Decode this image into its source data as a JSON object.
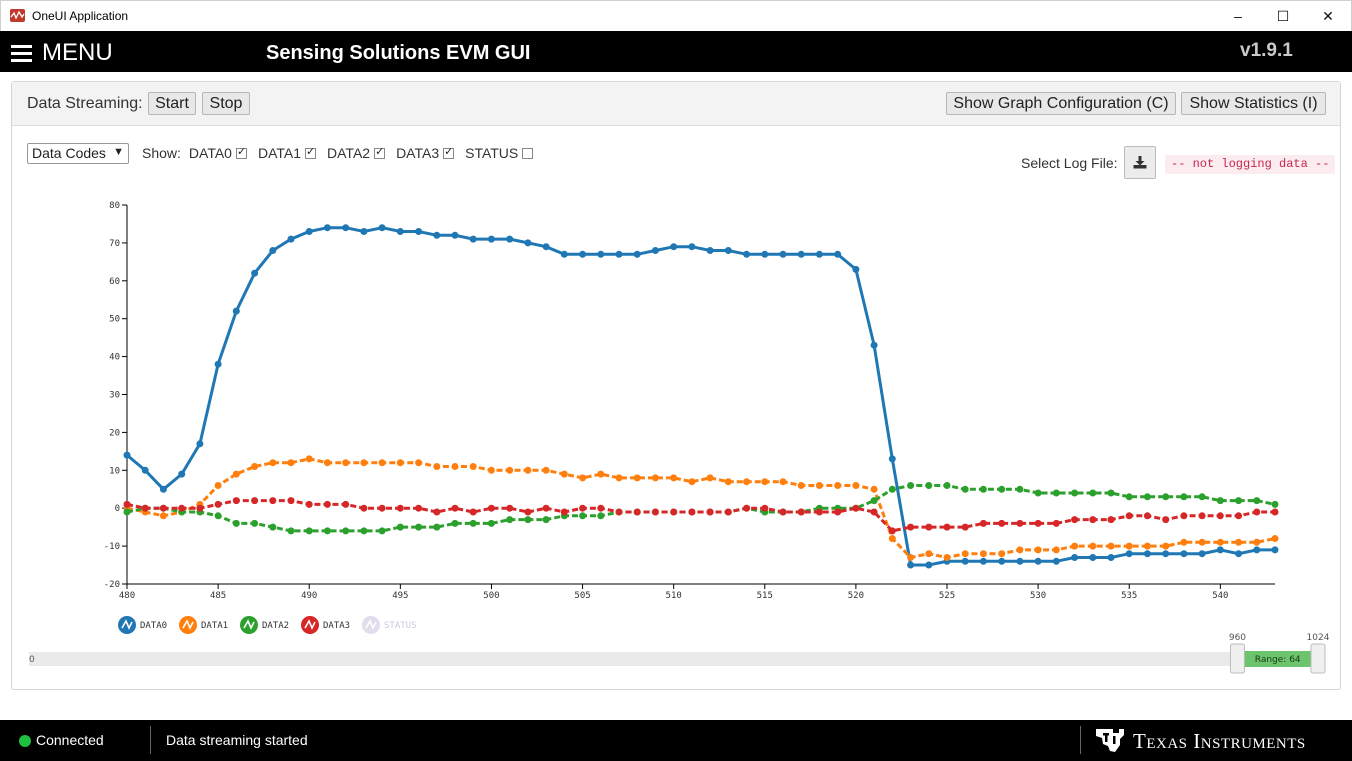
{
  "window": {
    "title": "OneUI Application",
    "minimize": "–",
    "maximize": "☐",
    "close": "✕"
  },
  "header": {
    "menu_label": "MENU",
    "title": "Sensing Solutions EVM GUI",
    "version": "v1.9.1"
  },
  "toolbar": {
    "streaming_label": "Data Streaming:",
    "start_label": "Start",
    "stop_label": "Stop",
    "graph_config_label": "Show Graph Configuration (C)",
    "statistics_label": "Show Statistics (I)"
  },
  "controls": {
    "display_mode": "Data Codes",
    "show_label": "Show:",
    "channels": [
      {
        "label": "DATA0",
        "checked": true
      },
      {
        "label": "DATA1",
        "checked": true
      },
      {
        "label": "DATA2",
        "checked": true
      },
      {
        "label": "DATA3",
        "checked": true
      },
      {
        "label": "STATUS",
        "checked": false
      }
    ],
    "log_label": "Select Log File:",
    "log_status": "-- not logging data --"
  },
  "chart_data": {
    "type": "line",
    "title": "",
    "xlabel": "",
    "ylabel": "",
    "xlim": [
      480,
      543
    ],
    "ylim": [
      -20,
      80
    ],
    "x_ticks": [
      480,
      485,
      490,
      495,
      500,
      505,
      510,
      515,
      520,
      525,
      530,
      535,
      540
    ],
    "y_ticks": [
      -20,
      -10,
      0,
      10,
      20,
      30,
      40,
      50,
      60,
      70,
      80
    ],
    "x_start": 480,
    "series": [
      {
        "name": "DATA0",
        "color": "#1f77b4",
        "values": [
          14,
          10,
          5,
          9,
          17,
          38,
          52,
          62,
          68,
          71,
          73,
          74,
          74,
          73,
          74,
          73,
          73,
          72,
          72,
          71,
          71,
          71,
          70,
          69,
          67,
          67,
          67,
          67,
          67,
          68,
          69,
          69,
          68,
          68,
          67,
          67,
          67,
          67,
          67,
          67,
          63,
          43,
          13,
          -15,
          -15,
          -14,
          -14,
          -14,
          -14,
          -14,
          -14,
          -14,
          -13,
          -13,
          -13,
          -12,
          -12,
          -12,
          -12,
          -12,
          -11,
          -12,
          -11,
          -11
        ]
      },
      {
        "name": "DATA1",
        "color": "#ff7f0e",
        "values": [
          0,
          -1,
          -2,
          -1,
          1,
          6,
          9,
          11,
          12,
          12,
          13,
          12,
          12,
          12,
          12,
          12,
          12,
          11,
          11,
          11,
          10,
          10,
          10,
          10,
          9,
          8,
          9,
          8,
          8,
          8,
          8,
          7,
          8,
          7,
          7,
          7,
          7,
          6,
          6,
          6,
          6,
          5,
          -8,
          -13,
          -12,
          -13,
          -12,
          -12,
          -12,
          -11,
          -11,
          -11,
          -10,
          -10,
          -10,
          -10,
          -10,
          -10,
          -9,
          -9,
          -9,
          -9,
          -9,
          -8
        ]
      },
      {
        "name": "DATA2",
        "color": "#2ca02c",
        "values": [
          -1,
          0,
          0,
          -1,
          -1,
          -2,
          -4,
          -4,
          -5,
          -6,
          -6,
          -6,
          -6,
          -6,
          -6,
          -5,
          -5,
          -5,
          -4,
          -4,
          -4,
          -3,
          -3,
          -3,
          -2,
          -2,
          -2,
          -1,
          -1,
          -1,
          -1,
          -1,
          -1,
          -1,
          0,
          -1,
          -1,
          -1,
          0,
          0,
          0,
          2,
          5,
          6,
          6,
          6,
          5,
          5,
          5,
          5,
          4,
          4,
          4,
          4,
          4,
          3,
          3,
          3,
          3,
          3,
          2,
          2,
          2,
          1
        ]
      },
      {
        "name": "DATA3",
        "color": "#d62728",
        "values": [
          1,
          0,
          0,
          0,
          0,
          1,
          2,
          2,
          2,
          2,
          1,
          1,
          1,
          0,
          0,
          0,
          0,
          -1,
          0,
          -1,
          0,
          0,
          -1,
          0,
          -1,
          0,
          0,
          -1,
          -1,
          -1,
          -1,
          -1,
          -1,
          -1,
          0,
          0,
          -1,
          -1,
          -1,
          -1,
          0,
          -1,
          -6,
          -5,
          -5,
          -5,
          -5,
          -4,
          -4,
          -4,
          -4,
          -4,
          -3,
          -3,
          -3,
          -2,
          -2,
          -3,
          -2,
          -2,
          -2,
          -2,
          -1,
          -1
        ]
      }
    ],
    "legend": [
      "DATA0",
      "DATA1",
      "DATA2",
      "DATA3",
      "STATUS"
    ],
    "legend_disabled": [
      "STATUS"
    ],
    "range_slider": {
      "min_label": "0",
      "left_label": "960",
      "right_label": "1024",
      "range_label": "Range: 64",
      "min": 0,
      "max": 1024,
      "from": 960,
      "to": 1024
    }
  },
  "statusbar": {
    "connection": "Connected",
    "message": "Data streaming started",
    "brand": "Texas Instruments"
  }
}
